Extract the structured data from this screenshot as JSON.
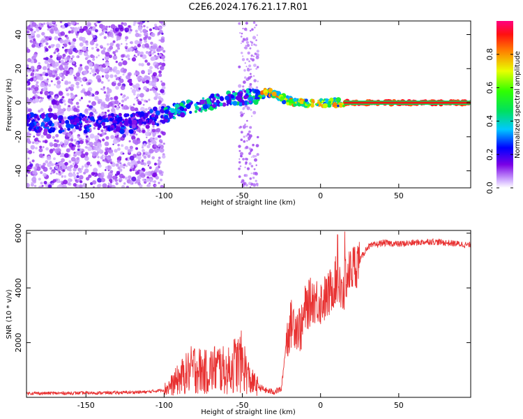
{
  "title": "C2E6.2024.176.21.17.R01",
  "colors": {
    "snr_line": "#e83030",
    "axis": "#000000",
    "dot_low": "#b890ff",
    "dot_mid": "#6a00e8"
  },
  "chart_data": [
    {
      "type": "heatmap",
      "xlabel": "Height of straight line (km)",
      "ylabel": "Frequency (Hz)",
      "xlim": [
        -188,
        96
      ],
      "ylim": [
        -50,
        48
      ],
      "xticks": [
        "-150",
        "-100",
        "-50",
        "0",
        "50"
      ],
      "xtick_values": [
        -150,
        -100,
        -50,
        0,
        50
      ],
      "yticks": [
        "-40",
        "-20",
        "0",
        "20",
        "40"
      ],
      "ytick_values": [
        -40,
        -20,
        0,
        20,
        40
      ],
      "colorbar": {
        "label": "Normalized spectral amplitude",
        "range": [
          0,
          1
        ],
        "ticks": [
          "0.0",
          "0.2",
          "0.4",
          "0.6",
          "0.8"
        ],
        "tick_values": [
          0,
          0.2,
          0.4,
          0.6,
          0.8
        ],
        "colormap": "rainbow (magenta-blue-cyan-green-yellow-red)"
      },
      "ridge": {
        "description": "frequency trend of the dominant spectral component",
        "x": [
          -120,
          -100,
          -90,
          -80,
          -70,
          -60,
          -50,
          -40,
          -35,
          -30,
          -25,
          -20,
          -15,
          -10,
          0,
          10,
          30,
          60,
          95
        ],
        "y": [
          -12,
          -7,
          -4,
          -2,
          0,
          2,
          3,
          4,
          6,
          5,
          3,
          1,
          0,
          0,
          0,
          0,
          0,
          0,
          0
        ]
      }
    },
    {
      "type": "line",
      "xlabel": "Height of straight line (km)",
      "ylabel": "SNR (10 * v/v)",
      "xlim": [
        -188,
        96
      ],
      "ylim": [
        0,
        6100
      ],
      "xticks": [
        "-150",
        "-100",
        "-50",
        "0",
        "50"
      ],
      "xtick_values": [
        -150,
        -100,
        -50,
        0,
        50
      ],
      "yticks": [
        "2000",
        "4000",
        "6000"
      ],
      "ytick_values": [
        2000,
        4000,
        6000
      ],
      "series": [
        {
          "x": [
            -188,
            -170,
            -150,
            -130,
            -110,
            -100,
            -95,
            -90,
            -85,
            -80,
            -75,
            -70,
            -65,
            -60,
            -55,
            -50,
            -45,
            -40,
            -35,
            -30,
            -25,
            -22,
            -20,
            -18,
            -15,
            -12,
            -10,
            -5,
            0,
            5,
            8,
            10,
            12,
            14,
            16,
            18,
            20,
            25,
            30,
            40,
            50,
            60,
            70,
            80,
            90,
            96
          ],
          "y": [
            150,
            150,
            160,
            170,
            200,
            280,
            450,
            700,
            900,
            1100,
            900,
            1000,
            1100,
            900,
            1200,
            1300,
            600,
            400,
            250,
            200,
            300,
            2000,
            2500,
            2800,
            2600,
            2500,
            3200,
            3600,
            3500,
            3700,
            4100,
            4300,
            4000,
            3600,
            4400,
            4500,
            4700,
            5000,
            5500,
            5650,
            5600,
            5650,
            5700,
            5650,
            5600,
            5550
          ]
        }
      ]
    }
  ]
}
